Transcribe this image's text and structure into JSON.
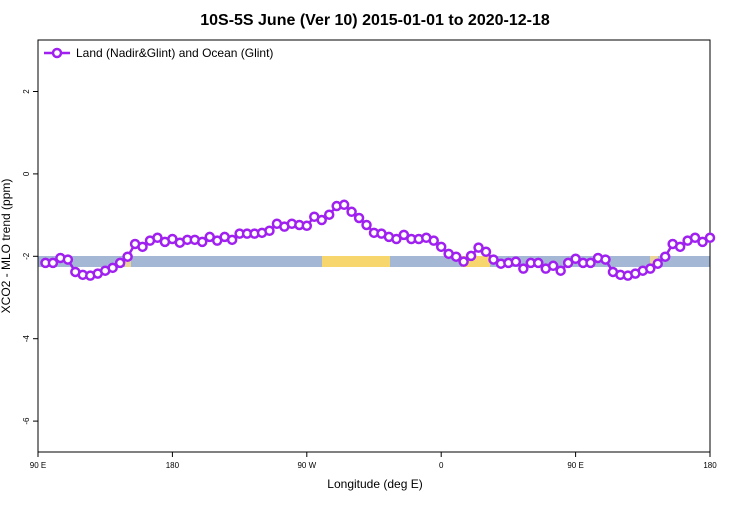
{
  "chart_data": {
    "type": "line",
    "title": "10S-5S June (Ver 10)   2015-01-01 to 2020-12-18",
    "x_label": "Longitude (deg E)",
    "y_label": "XCO2 - MLO trend (ppm)",
    "xlim": [
      90,
      540
    ],
    "ylim": [
      -6.75,
      3.25
    ],
    "xticks": [
      {
        "value": 90,
        "label": "90 E"
      },
      180,
      {
        "value": 270,
        "label": "90 W"
      },
      {
        "value": 360,
        "label": "0"
      },
      {
        "value": 450,
        "label": "90 E"
      },
      {
        "value": 540,
        "label": "180"
      }
    ],
    "yticks": [
      2,
      0,
      -2,
      -4,
      -6
    ],
    "legend": "top-left",
    "x": [
      95,
      100,
      105,
      110,
      115,
      120,
      125,
      130,
      135,
      140,
      145,
      150,
      155,
      160,
      165,
      170,
      175,
      180,
      185,
      190,
      195,
      200,
      205,
      210,
      215,
      220,
      225,
      230,
      235,
      240,
      245,
      250,
      255,
      260,
      265,
      270,
      275,
      280,
      285,
      290,
      295,
      300,
      305,
      310,
      315,
      320,
      325,
      330,
      335,
      340,
      345,
      350,
      355,
      360,
      365,
      370,
      375,
      380,
      385,
      390,
      395,
      400,
      405,
      410,
      415,
      420,
      425,
      430,
      435,
      440,
      445,
      450,
      455,
      460,
      465,
      470,
      475,
      480,
      485,
      490,
      495,
      500,
      505,
      510,
      515,
      520,
      525,
      530,
      535,
      540
    ],
    "series": [
      {
        "name": "Land (Nadir&Glint) and Ocean (Glint)",
        "color": "#a020f0",
        "values": [
          -2.16,
          -2.16,
          -2.04,
          -2.08,
          -2.38,
          -2.45,
          -2.47,
          -2.42,
          -2.35,
          -2.28,
          -2.16,
          -2.01,
          -1.7,
          -1.77,
          -1.62,
          -1.55,
          -1.65,
          -1.58,
          -1.67,
          -1.6,
          -1.6,
          -1.65,
          -1.53,
          -1.62,
          -1.53,
          -1.6,
          -1.45,
          -1.45,
          -1.45,
          -1.43,
          -1.38,
          -1.21,
          -1.28,
          -1.21,
          -1.24,
          -1.26,
          -1.04,
          -1.12,
          -0.99,
          -0.78,
          -0.75,
          -0.92,
          -1.07,
          -1.24,
          -1.43,
          -1.45,
          -1.53,
          -1.58,
          -1.48,
          -1.58,
          -1.58,
          -1.55,
          -1.62,
          -1.77,
          -1.94,
          -2.01,
          -2.13,
          -1.99,
          -1.79,
          -1.89,
          -2.08,
          -2.18,
          -2.16,
          -2.13,
          -2.3,
          -2.16,
          -2.16,
          -2.3,
          -2.23,
          -2.35,
          -2.16,
          -2.06,
          -2.16,
          -2.16,
          -2.04,
          -2.08,
          -2.38,
          -2.45,
          -2.47,
          -2.42,
          -2.35,
          -2.3,
          -2.18,
          -2.01,
          -1.7,
          -1.77,
          -1.62,
          -1.55,
          -1.65,
          -1.55
        ]
      }
    ]
  }
}
